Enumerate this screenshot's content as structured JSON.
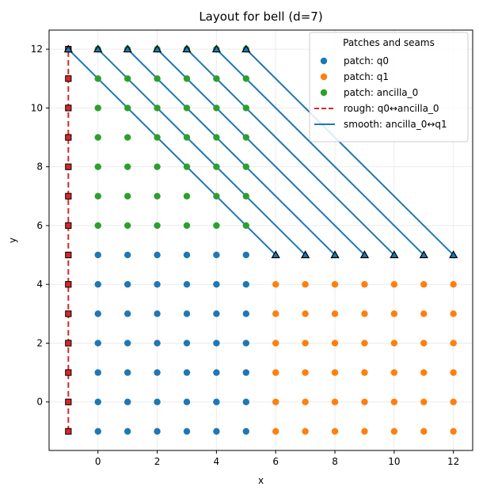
{
  "chart_data": {
    "type": "scatter",
    "title": "Layout for bell (d=7)",
    "xlabel": "x",
    "ylabel": "y",
    "xlim": [
      -1.65,
      12.65
    ],
    "ylim": [
      -1.65,
      12.65
    ],
    "xticks": [
      0,
      2,
      4,
      6,
      8,
      10,
      12
    ],
    "yticks": [
      0,
      2,
      4,
      6,
      8,
      10,
      12
    ],
    "grid": true,
    "legend": {
      "title": "Patches and seams",
      "placement": "top-right",
      "entries": [
        {
          "label": "patch: q0",
          "kind": "dot",
          "color": "#1f77b4"
        },
        {
          "label": "patch: q1",
          "kind": "dot",
          "color": "#ff7f0e"
        },
        {
          "label": "patch: ancilla_0",
          "kind": "dot",
          "color": "#2ca02c"
        },
        {
          "label": "rough: q0↔ancilla_0",
          "kind": "dashed",
          "color": "#d62728"
        },
        {
          "label": "smooth: ancilla_0↔q1",
          "kind": "solid",
          "color": "#1f77b4"
        }
      ]
    },
    "patches": [
      {
        "name": "q0",
        "color": "#1f77b4",
        "x_range": [
          0,
          5
        ],
        "y_range": [
          -1,
          5
        ]
      },
      {
        "name": "q1",
        "color": "#ff7f0e",
        "x_range": [
          6,
          12
        ],
        "y_range": [
          -1,
          4
        ]
      },
      {
        "name": "ancilla_0",
        "color": "#2ca02c",
        "x_range": [
          0,
          5
        ],
        "y_range": [
          6,
          12
        ]
      }
    ],
    "rough_seam": {
      "color": "#d62728",
      "line": {
        "x": [
          -1,
          -1
        ],
        "y": [
          -1,
          12
        ]
      },
      "markers": {
        "x": -1,
        "y": [
          -1,
          0,
          1,
          2,
          3,
          4,
          5,
          6,
          7,
          8,
          9,
          10,
          11,
          12
        ]
      }
    },
    "smooth_seam": {
      "color": "#1f77b4",
      "segments": [
        {
          "from": [
            -1,
            12
          ],
          "to": [
            6,
            5
          ]
        },
        {
          "from": [
            0,
            12
          ],
          "to": [
            7,
            5
          ]
        },
        {
          "from": [
            1,
            12
          ],
          "to": [
            8,
            5
          ]
        },
        {
          "from": [
            2,
            12
          ],
          "to": [
            9,
            5
          ]
        },
        {
          "from": [
            3,
            12
          ],
          "to": [
            10,
            5
          ]
        },
        {
          "from": [
            4,
            12
          ],
          "to": [
            11,
            5
          ]
        },
        {
          "from": [
            5,
            12
          ],
          "to": [
            12,
            5
          ]
        }
      ]
    }
  }
}
